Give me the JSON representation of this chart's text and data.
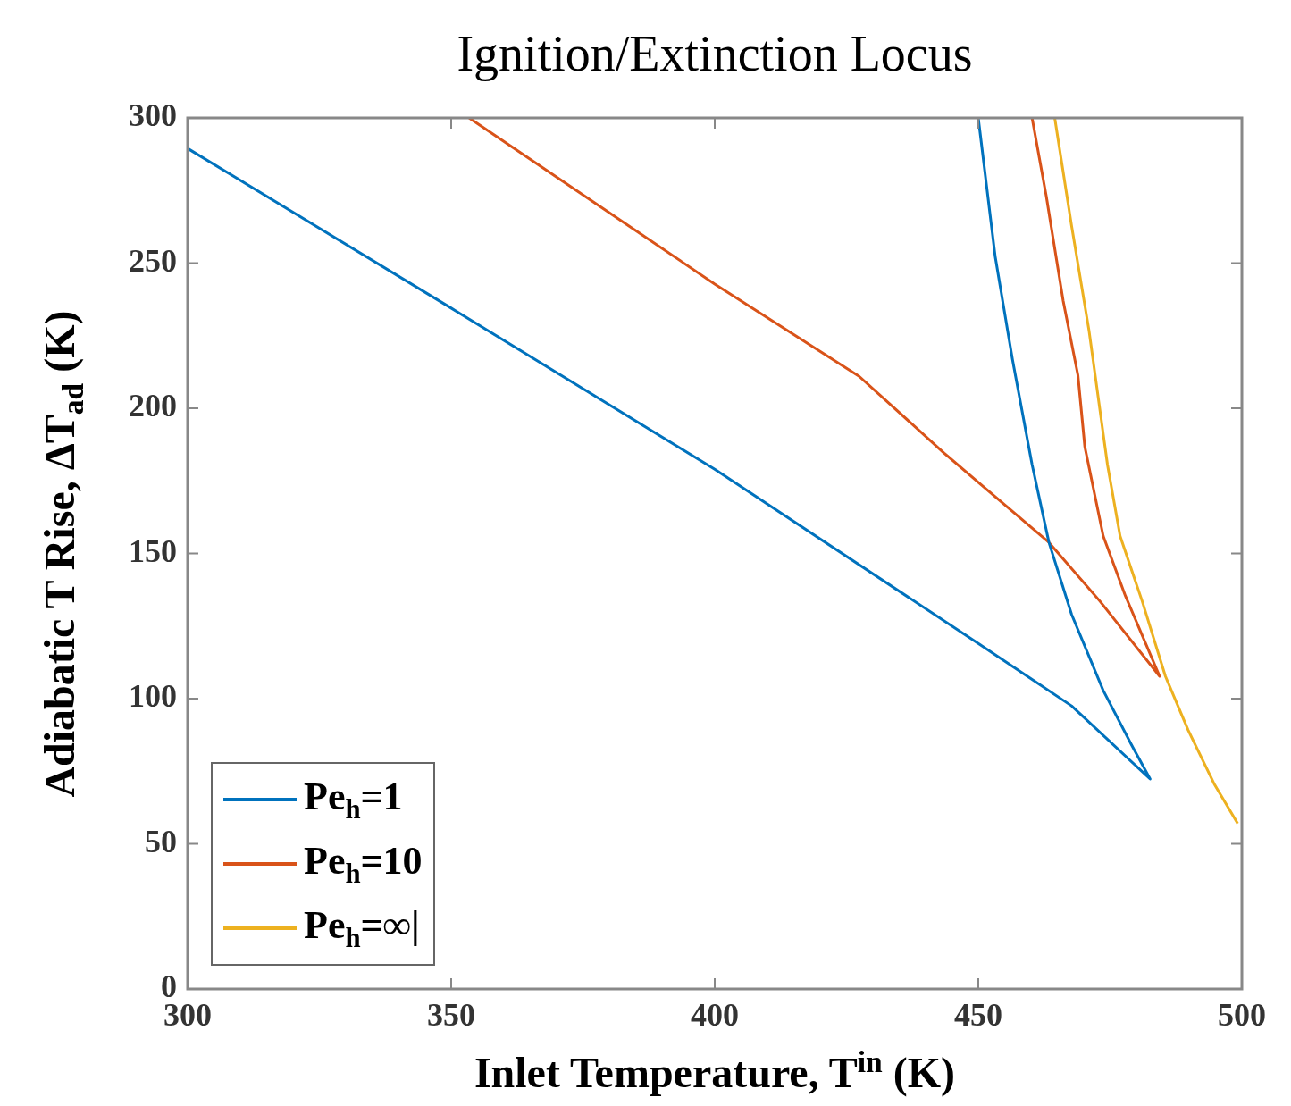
{
  "chart_data": {
    "type": "line",
    "title": "Ignition/Extinction Locus",
    "xlabel": "Inlet Temperature, T$^{in}$ (K)",
    "ylabel": "Adiabatic T Rise, ΔT$_{ad}$ (K)",
    "xlim": [
      300,
      500
    ],
    "ylim": [
      0,
      300
    ],
    "xticks": [
      300,
      350,
      400,
      450,
      500
    ],
    "yticks": [
      0,
      50,
      100,
      150,
      200,
      250,
      300
    ],
    "legend": "bottom left",
    "marker": "none",
    "series": [
      {
        "name": "Pe$_{h}$=1",
        "color": "#0072bd",
        "x": [
          300,
          350,
          400,
          450,
          467.7,
          482.6,
          479,
          473.7,
          467.7,
          463.4,
          460.2,
          456.5,
          453.2,
          450
        ],
        "values": [
          289.5,
          234.5,
          179,
          119,
          97.5,
          72.3,
          84.3,
          102.8,
          129,
          153.8,
          180.6,
          216.6,
          252.3,
          300
        ]
      },
      {
        "name": "Pe$_{h}$=10",
        "color": "#d95319",
        "x": [
          353.4,
          400,
          427.4,
          443.5,
          450,
          463.4,
          473.1,
          484.4,
          477.9,
          473.7,
          470.2,
          468.9,
          466.1,
          462.9,
          460.2
        ],
        "values": [
          300,
          242.8,
          211,
          184.6,
          174.5,
          153.8,
          133.5,
          107.7,
          135.4,
          156,
          186.8,
          211.4,
          237,
          273,
          300
        ]
      },
      {
        "name": "Pe$_{h}$=∞|",
        "color": "#edb120",
        "x": [
          464.5,
          467.7,
          471,
          474.5,
          476.9,
          481.1,
          485.5,
          489.8,
          494.7,
          499.2
        ],
        "values": [
          300,
          262.8,
          226.8,
          180.6,
          156,
          133.5,
          107.7,
          89.2,
          70.8,
          57
        ]
      }
    ]
  }
}
